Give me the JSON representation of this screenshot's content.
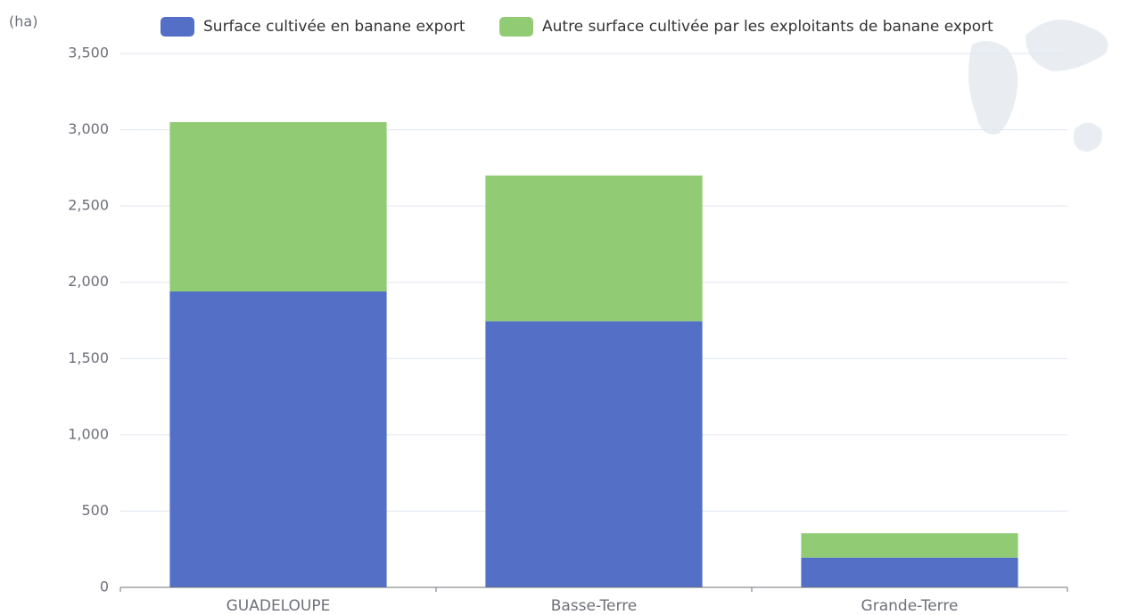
{
  "chart_data": {
    "type": "stacked_bar",
    "y_axis_label": "(ha)",
    "categories": [
      "GUADELOUPE",
      "Basse-Terre",
      "Grande-Terre"
    ],
    "series": [
      {
        "name": "Surface cultivée en banane export",
        "color": "#5470c6",
        "values": [
          1940,
          1745,
          195
        ]
      },
      {
        "name": "Autre surface cultivée par les exploitants de banane export",
        "color": "#91cc75",
        "values": [
          1110,
          955,
          160
        ]
      }
    ],
    "ylim": [
      0,
      3500
    ],
    "yticks": [
      0,
      500,
      {
        "value": 1000,
        "label": "1,000"
      },
      {
        "value": 1500,
        "label": "1,500"
      },
      {
        "value": 2000,
        "label": "2,000"
      },
      {
        "value": 2500,
        "label": "2,500"
      },
      {
        "value": 3000,
        "label": "3,000"
      },
      {
        "value": 3500,
        "label": "3,500"
      }
    ],
    "grid": true,
    "legend": "top"
  }
}
